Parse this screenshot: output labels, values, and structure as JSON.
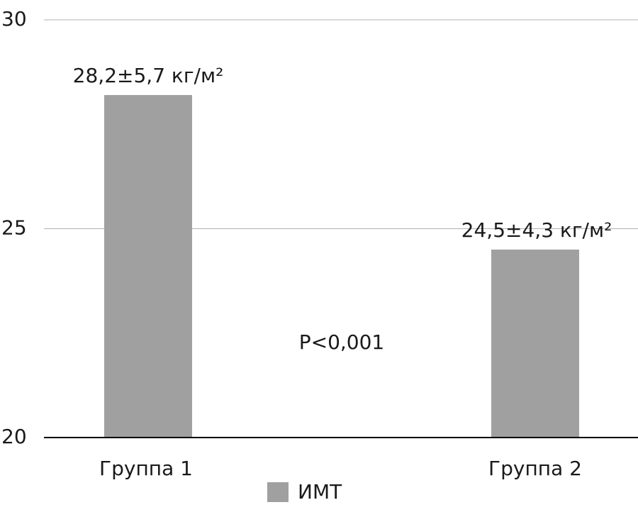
{
  "chart_data": {
    "type": "bar",
    "categories": [
      "Группа 1",
      "Группа 2"
    ],
    "series": [
      {
        "name": "ИМТ",
        "color": "#a0a0a0",
        "values": [
          28.2,
          24.5
        ],
        "value_labels": [
          "28,2±5,7 кг/м²",
          "24,5±4,3 кг/м²"
        ]
      }
    ],
    "annotations": [
      "P<0,001"
    ],
    "ylim": [
      20,
      30
    ],
    "yticks": [
      20,
      25,
      30
    ],
    "grid": true
  }
}
